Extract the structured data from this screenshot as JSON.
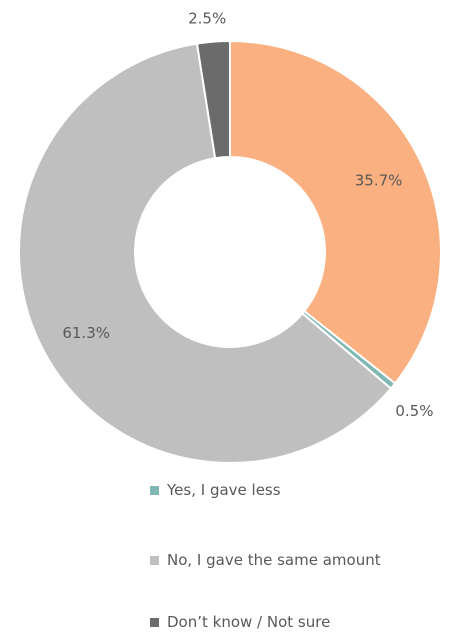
{
  "chart_data": {
    "type": "pie",
    "title": "",
    "categories": [
      "",
      "Yes, I gave less",
      "No, I gave the same amount",
      "Don’t know / Not sure"
    ],
    "values": [
      35.7,
      0.5,
      61.3,
      2.5
    ],
    "labels": [
      "35.7%",
      "0.5%",
      "61.3%",
      "2.5%"
    ],
    "colors": [
      "#FAB080",
      "#7FB7B2",
      "#BFBFBF",
      "#6B6B6B"
    ],
    "hole": 0.45,
    "legend": "bottom",
    "legend_entries": [
      {
        "label": "Yes, I gave less",
        "color": "#7FB7B2"
      },
      {
        "label": "No, I gave the same amount",
        "color": "#BFBFBF"
      },
      {
        "label": "Don’t know / Not sure",
        "color": "#6B6B6B"
      }
    ]
  }
}
